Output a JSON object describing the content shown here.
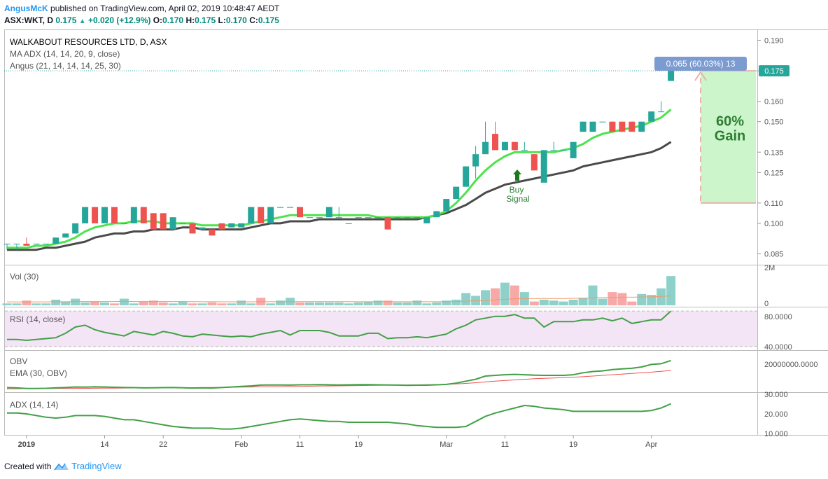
{
  "header": {
    "author": "AngusMcK",
    "published": "published on TradingView.com, April 02, 2019 10:48:47 AEDT",
    "symbol": "ASX:WKT, D",
    "last": "0.175",
    "change": "+0.020 (+12.9%)",
    "o_label": "O:",
    "o": "0.170",
    "h_label": "H:",
    "h": "0.175",
    "l_label": "L:",
    "l": "0.170",
    "c_label": "C:",
    "c": "0.175"
  },
  "footer": {
    "created_with": "Created with",
    "brand": "TradingView"
  },
  "colors": {
    "up": "#26a69a",
    "down": "#ef5350",
    "ma_fast": "#4ce34c",
    "ma_slow": "#4a4a4a",
    "rsi": "#43a047",
    "rsi_band": "#f3e5f5",
    "obv": "#43a047",
    "obv_ema": "#ef5350",
    "adx": "#43a047",
    "gain_box": "#ccf5cc",
    "badge": "#7b9bd1",
    "price_badge": "#26a69a"
  },
  "chart_data": [
    {
      "type": "candlestick",
      "title": "WALKABOUT RESOURCES LTD, D, ASX",
      "legend": [
        "MA ADX (14, 14, 20, 9, close)",
        "Angus (21, 14, 14, 14, 25, 30)"
      ],
      "x_tick_labels": [
        "2019",
        "14",
        "22",
        "Feb",
        "11",
        "19",
        "Mar",
        "11",
        "19",
        "Apr"
      ],
      "ylim": [
        0.08,
        0.195
      ],
      "y_ticks": [
        0.085,
        0.1,
        0.11,
        0.125,
        0.135,
        0.15,
        0.16,
        0.175,
        0.19
      ],
      "y_tick_labels": [
        "0.085",
        "0.100",
        "0.110",
        "0.125",
        "0.135",
        "0.150",
        "0.160",
        "0.175",
        "0.190"
      ],
      "last_price_label": "0.175",
      "measure_label": "0.065 (60.03%) 13",
      "gain_text": [
        "60%",
        "Gain"
      ],
      "annotation": [
        "Buy",
        "Signal"
      ],
      "candles": [
        {
          "o": 0.09,
          "h": 0.09,
          "l": 0.087,
          "c": 0.09
        },
        {
          "o": 0.09,
          "h": 0.09,
          "l": 0.087,
          "c": 0.09
        },
        {
          "o": 0.09,
          "h": 0.093,
          "l": 0.089,
          "c": 0.089
        },
        {
          "o": 0.09,
          "h": 0.09,
          "l": 0.09,
          "c": 0.09
        },
        {
          "o": 0.09,
          "h": 0.09,
          "l": 0.09,
          "c": 0.09
        },
        {
          "o": 0.09,
          "h": 0.093,
          "l": 0.09,
          "c": 0.093
        },
        {
          "o": 0.093,
          "h": 0.095,
          "l": 0.093,
          "c": 0.095
        },
        {
          "o": 0.095,
          "h": 0.1,
          "l": 0.095,
          "c": 0.1
        },
        {
          "o": 0.1,
          "h": 0.108,
          "l": 0.1,
          "c": 0.108
        },
        {
          "o": 0.108,
          "h": 0.108,
          "l": 0.1,
          "c": 0.1
        },
        {
          "o": 0.1,
          "h": 0.108,
          "l": 0.1,
          "c": 0.108
        },
        {
          "o": 0.108,
          "h": 0.108,
          "l": 0.1,
          "c": 0.1
        },
        {
          "o": 0.1,
          "h": 0.1,
          "l": 0.1,
          "c": 0.1
        },
        {
          "o": 0.1,
          "h": 0.108,
          "l": 0.1,
          "c": 0.108
        },
        {
          "o": 0.108,
          "h": 0.108,
          "l": 0.1,
          "c": 0.1
        },
        {
          "o": 0.105,
          "h": 0.105,
          "l": 0.097,
          "c": 0.097
        },
        {
          "o": 0.105,
          "h": 0.105,
          "l": 0.097,
          "c": 0.097
        },
        {
          "o": 0.097,
          "h": 0.103,
          "l": 0.097,
          "c": 0.103
        },
        {
          "o": 0.1,
          "h": 0.1,
          "l": 0.1,
          "c": 0.1
        },
        {
          "o": 0.1,
          "h": 0.1,
          "l": 0.095,
          "c": 0.095
        },
        {
          "o": 0.097,
          "h": 0.098,
          "l": 0.097,
          "c": 0.098
        },
        {
          "o": 0.097,
          "h": 0.097,
          "l": 0.094,
          "c": 0.094
        },
        {
          "o": 0.1,
          "h": 0.1,
          "l": 0.097,
          "c": 0.097
        },
        {
          "o": 0.098,
          "h": 0.1,
          "l": 0.098,
          "c": 0.1
        },
        {
          "o": 0.098,
          "h": 0.1,
          "l": 0.098,
          "c": 0.1
        },
        {
          "o": 0.1,
          "h": 0.108,
          "l": 0.1,
          "c": 0.108
        },
        {
          "o": 0.108,
          "h": 0.108,
          "l": 0.1,
          "c": 0.1
        },
        {
          "o": 0.1,
          "h": 0.108,
          "l": 0.1,
          "c": 0.108
        },
        {
          "o": 0.108,
          "h": 0.108,
          "l": 0.108,
          "c": 0.108
        },
        {
          "o": 0.108,
          "h": 0.108,
          "l": 0.108,
          "c": 0.108
        },
        {
          "o": 0.108,
          "h": 0.108,
          "l": 0.103,
          "c": 0.103
        },
        {
          "o": 0.103,
          "h": 0.103,
          "l": 0.103,
          "c": 0.103
        },
        {
          "o": 0.103,
          "h": 0.103,
          "l": 0.103,
          "c": 0.103
        },
        {
          "o": 0.103,
          "h": 0.108,
          "l": 0.103,
          "c": 0.108
        },
        {
          "o": 0.103,
          "h": 0.108,
          "l": 0.103,
          "c": 0.103
        },
        {
          "o": 0.1,
          "h": 0.1,
          "l": 0.1,
          "c": 0.1
        },
        {
          "o": 0.103,
          "h": 0.103,
          "l": 0.103,
          "c": 0.103
        },
        {
          "o": 0.103,
          "h": 0.103,
          "l": 0.103,
          "c": 0.103
        },
        {
          "o": 0.103,
          "h": 0.103,
          "l": 0.103,
          "c": 0.103
        },
        {
          "o": 0.103,
          "h": 0.103,
          "l": 0.097,
          "c": 0.097
        },
        {
          "o": 0.103,
          "h": 0.103,
          "l": 0.103,
          "c": 0.103
        },
        {
          "o": 0.103,
          "h": 0.103,
          "l": 0.103,
          "c": 0.103
        },
        {
          "o": 0.103,
          "h": 0.103,
          "l": 0.103,
          "c": 0.103
        },
        {
          "o": 0.1,
          "h": 0.103,
          "l": 0.1,
          "c": 0.103
        },
        {
          "o": 0.103,
          "h": 0.106,
          "l": 0.103,
          "c": 0.106
        },
        {
          "o": 0.106,
          "h": 0.112,
          "l": 0.106,
          "c": 0.112
        },
        {
          "o": 0.112,
          "h": 0.118,
          "l": 0.112,
          "c": 0.118
        },
        {
          "o": 0.118,
          "h": 0.128,
          "l": 0.118,
          "c": 0.128
        },
        {
          "o": 0.128,
          "h": 0.138,
          "l": 0.122,
          "c": 0.134
        },
        {
          "o": 0.134,
          "h": 0.15,
          "l": 0.134,
          "c": 0.14
        },
        {
          "o": 0.144,
          "h": 0.15,
          "l": 0.136,
          "c": 0.136
        },
        {
          "o": 0.136,
          "h": 0.14,
          "l": 0.136,
          "c": 0.14
        },
        {
          "o": 0.14,
          "h": 0.14,
          "l": 0.136,
          "c": 0.136
        },
        {
          "o": 0.136,
          "h": 0.14,
          "l": 0.136,
          "c": 0.136
        },
        {
          "o": 0.134,
          "h": 0.134,
          "l": 0.126,
          "c": 0.126
        },
        {
          "o": 0.12,
          "h": 0.136,
          "l": 0.12,
          "c": 0.136
        },
        {
          "o": 0.136,
          "h": 0.14,
          "l": 0.136,
          "c": 0.136
        },
        {
          "o": 0.136,
          "h": 0.136,
          "l": 0.136,
          "c": 0.136
        },
        {
          "o": 0.132,
          "h": 0.14,
          "l": 0.132,
          "c": 0.14
        },
        {
          "o": 0.145,
          "h": 0.15,
          "l": 0.145,
          "c": 0.15
        },
        {
          "o": 0.145,
          "h": 0.15,
          "l": 0.145,
          "c": 0.15
        },
        {
          "o": 0.15,
          "h": 0.15,
          "l": 0.15,
          "c": 0.15
        },
        {
          "o": 0.15,
          "h": 0.15,
          "l": 0.145,
          "c": 0.145
        },
        {
          "o": 0.15,
          "h": 0.15,
          "l": 0.145,
          "c": 0.145
        },
        {
          "o": 0.15,
          "h": 0.15,
          "l": 0.145,
          "c": 0.145
        },
        {
          "o": 0.145,
          "h": 0.15,
          "l": 0.145,
          "c": 0.15
        },
        {
          "o": 0.15,
          "h": 0.155,
          "l": 0.15,
          "c": 0.155
        },
        {
          "o": 0.155,
          "h": 0.16,
          "l": 0.155,
          "c": 0.155
        },
        {
          "o": 0.17,
          "h": 0.175,
          "l": 0.17,
          "c": 0.175
        }
      ],
      "ma_fast": [
        0.088,
        0.088,
        0.088,
        0.089,
        0.089,
        0.09,
        0.091,
        0.093,
        0.096,
        0.098,
        0.099,
        0.1,
        0.1,
        0.101,
        0.101,
        0.101,
        0.1,
        0.1,
        0.1,
        0.1,
        0.099,
        0.099,
        0.099,
        0.099,
        0.099,
        0.1,
        0.101,
        0.102,
        0.103,
        0.104,
        0.104,
        0.104,
        0.104,
        0.104,
        0.104,
        0.104,
        0.104,
        0.104,
        0.103,
        0.103,
        0.103,
        0.103,
        0.103,
        0.103,
        0.104,
        0.106,
        0.11,
        0.115,
        0.121,
        0.126,
        0.13,
        0.133,
        0.135,
        0.135,
        0.135,
        0.135,
        0.135,
        0.136,
        0.137,
        0.139,
        0.142,
        0.144,
        0.145,
        0.146,
        0.147,
        0.148,
        0.15,
        0.152,
        0.156
      ],
      "ma_slow": [
        0.087,
        0.087,
        0.087,
        0.087,
        0.088,
        0.088,
        0.089,
        0.09,
        0.091,
        0.093,
        0.094,
        0.095,
        0.095,
        0.096,
        0.096,
        0.097,
        0.097,
        0.097,
        0.098,
        0.098,
        0.097,
        0.097,
        0.097,
        0.097,
        0.097,
        0.098,
        0.099,
        0.1,
        0.1,
        0.101,
        0.101,
        0.101,
        0.102,
        0.102,
        0.102,
        0.102,
        0.102,
        0.102,
        0.102,
        0.102,
        0.102,
        0.102,
        0.102,
        0.103,
        0.104,
        0.105,
        0.107,
        0.109,
        0.112,
        0.115,
        0.117,
        0.119,
        0.12,
        0.121,
        0.122,
        0.123,
        0.124,
        0.125,
        0.126,
        0.128,
        0.129,
        0.13,
        0.131,
        0.132,
        0.133,
        0.134,
        0.135,
        0.137,
        0.14
      ]
    },
    {
      "type": "bar",
      "title": "Vol (30)",
      "y_tick_labels": [
        "2M",
        "0"
      ],
      "ylim": [
        0,
        2000000
      ],
      "values": [
        100000,
        100000,
        250000,
        100000,
        100000,
        300000,
        200000,
        350000,
        150000,
        200000,
        150000,
        100000,
        350000,
        100000,
        200000,
        250000,
        150000,
        100000,
        200000,
        100000,
        100000,
        150000,
        100000,
        100000,
        250000,
        100000,
        400000,
        100000,
        250000,
        400000,
        150000,
        150000,
        150000,
        150000,
        150000,
        100000,
        150000,
        200000,
        250000,
        250000,
        150000,
        150000,
        250000,
        100000,
        150000,
        250000,
        300000,
        650000,
        500000,
        800000,
        900000,
        1200000,
        1050000,
        700000,
        200000,
        300000,
        250000,
        200000,
        300000,
        400000,
        1050000,
        350000,
        700000,
        650000,
        200000,
        600000,
        550000,
        900000,
        1550000
      ],
      "ma_values": [
        180000,
        180000,
        180000,
        180000,
        180000,
        190000,
        190000,
        200000,
        200000,
        200000,
        200000,
        200000,
        210000,
        200000,
        200000,
        200000,
        200000,
        200000,
        200000,
        195000,
        190000,
        190000,
        185000,
        185000,
        185000,
        185000,
        190000,
        190000,
        190000,
        195000,
        195000,
        195000,
        195000,
        195000,
        195000,
        195000,
        190000,
        190000,
        190000,
        190000,
        190000,
        190000,
        190000,
        190000,
        190000,
        195000,
        200000,
        220000,
        240000,
        260000,
        290000,
        320000,
        350000,
        360000,
        360000,
        360000,
        360000,
        360000,
        370000,
        380000,
        400000,
        410000,
        420000,
        430000,
        430000,
        440000,
        450000,
        470000,
        500000
      ]
    },
    {
      "type": "line",
      "title": "RSI (14, close)",
      "y_tick_labels": [
        "80.0000",
        "40.0000"
      ],
      "ylim": [
        36,
        84
      ],
      "values": [
        48,
        48,
        47,
        48,
        49,
        50,
        55,
        62,
        64,
        59,
        56,
        54,
        52,
        57,
        55,
        53,
        57,
        55,
        52,
        51,
        54,
        53,
        52,
        51,
        52,
        51,
        54,
        56,
        58,
        53,
        58,
        58,
        58,
        56,
        52,
        52,
        52,
        55,
        55,
        49,
        50,
        50,
        51,
        50,
        52,
        54,
        60,
        64,
        70,
        72,
        74,
        74,
        76,
        72,
        72,
        62,
        68,
        68,
        68,
        70,
        70,
        72,
        69,
        72,
        66,
        68,
        70,
        70,
        80
      ],
      "band": [
        40,
        80
      ]
    },
    {
      "type": "line",
      "title": "OBV",
      "legend": [
        "OBV",
        "EMA (30, OBV)"
      ],
      "y_tick_labels": [
        "20000000.0000"
      ],
      "ylim": [
        -2000000,
        30000000
      ],
      "values": [
        1500000,
        1300000,
        900000,
        900000,
        1000000,
        1300000,
        1600000,
        2000000,
        1900000,
        2100000,
        2000000,
        1800000,
        1600000,
        1500000,
        1300000,
        1400000,
        1500000,
        1600000,
        1400000,
        1200000,
        1300000,
        1200000,
        1600000,
        2000000,
        2500000,
        2800000,
        3500000,
        3600000,
        3600000,
        3500000,
        3700000,
        3700000,
        3800000,
        3700000,
        3600000,
        3700000,
        3800000,
        3800000,
        3700000,
        3600000,
        3500000,
        3300000,
        3400000,
        3400000,
        3700000,
        4000000,
        5000000,
        6500000,
        8000000,
        10500000,
        11000000,
        11500000,
        11800000,
        11500000,
        11200000,
        11000000,
        11000000,
        11000000,
        11500000,
        13000000,
        14000000,
        14500000,
        15500000,
        16000000,
        16500000,
        17500000,
        19500000,
        20000000,
        22500000
      ],
      "ema_values": [
        600000,
        650000,
        700000,
        750000,
        800000,
        850000,
        900000,
        950000,
        1000000,
        1050000,
        1100000,
        1150000,
        1200000,
        1250000,
        1300000,
        1350000,
        1400000,
        1450000,
        1500000,
        1550000,
        1600000,
        1650000,
        1700000,
        1800000,
        1900000,
        2000000,
        2100000,
        2200000,
        2300000,
        2400000,
        2500000,
        2600000,
        2700000,
        2800000,
        2900000,
        3000000,
        3100000,
        3200000,
        3300000,
        3400000,
        3500000,
        3600000,
        3700000,
        3800000,
        3900000,
        4100000,
        4400000,
        4800000,
        5300000,
        5900000,
        6500000,
        7000000,
        7500000,
        8000000,
        8400000,
        8700000,
        9000000,
        9300000,
        9600000,
        10000000,
        10500000,
        11000000,
        11500000,
        12000000,
        12500000,
        13000000,
        13500000,
        14100000,
        14800000
      ]
    },
    {
      "type": "line",
      "title": "ADX (14, 14)",
      "y_tick_labels": [
        "30.000",
        "20.000",
        "10.000"
      ],
      "ylim": [
        8,
        33
      ],
      "values": [
        21,
        21,
        20.5,
        19.5,
        18.5,
        18,
        18.5,
        19.5,
        19.5,
        19.5,
        19,
        18,
        17,
        17,
        16,
        15,
        14,
        13,
        12.5,
        12,
        12,
        12,
        11.5,
        11.5,
        12,
        13,
        14,
        15,
        16,
        17,
        17.5,
        17,
        16.5,
        16,
        16,
        15.5,
        15.5,
        15.5,
        15.5,
        15.5,
        15,
        14.5,
        13.5,
        13,
        12.5,
        12.5,
        12.5,
        13,
        16,
        19,
        21,
        22.5,
        24,
        25.5,
        25,
        24,
        23.5,
        23,
        22,
        22,
        22,
        22,
        22,
        22,
        22,
        22,
        22.5,
        24,
        26.5
      ]
    }
  ]
}
